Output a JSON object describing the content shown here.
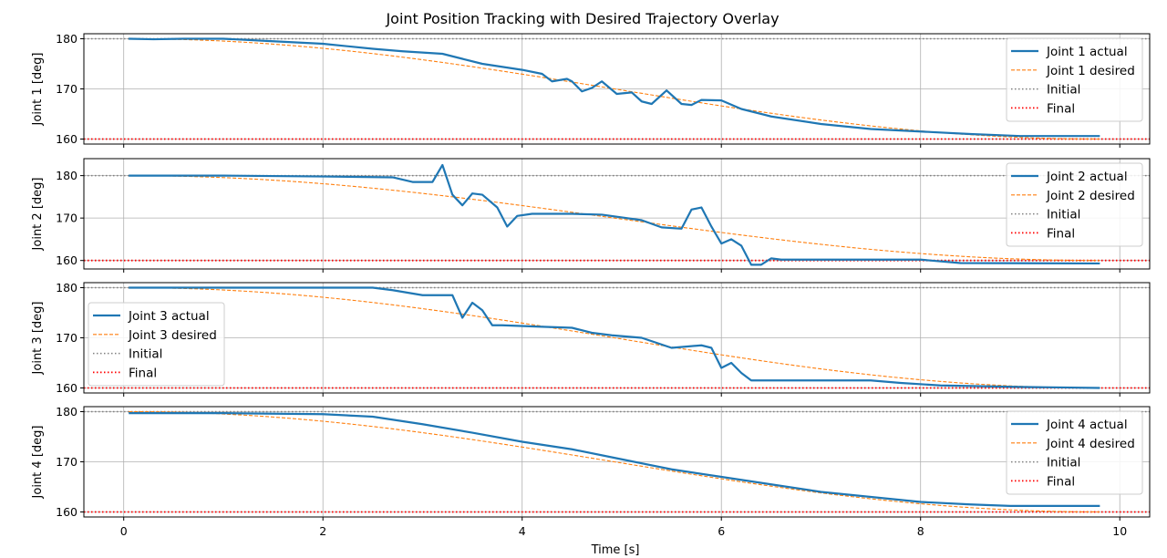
{
  "chart_data": {
    "type": "line",
    "title": "Joint Position Tracking with Desired Trajectory Overlay",
    "xlabel": "Time [s]",
    "xlim": [
      -0.4,
      10.3
    ],
    "x_ticks": [
      0,
      2,
      4,
      6,
      8,
      10
    ],
    "grid": true,
    "colors": {
      "actual": "#1f77b4",
      "desired": "#ff7f0e",
      "initial": "#808080",
      "final": "#ff0000"
    },
    "subplots": [
      {
        "ylabel": "Joint 1 [deg]",
        "ylim": [
          159,
          181
        ],
        "y_ticks": [
          160,
          170,
          180
        ],
        "legend_position": "upper right",
        "initial": 180,
        "final": 160,
        "desired": {
          "name": "Joint 1 desired",
          "start": 180,
          "end": 160,
          "t0": 0.05,
          "t1": 9.8
        },
        "actual": {
          "name": "Joint 1 actual",
          "x": [
            0.05,
            0.3,
            0.6,
            1.0,
            1.5,
            2.0,
            2.5,
            2.8,
            3.2,
            3.4,
            3.6,
            4.0,
            4.2,
            4.3,
            4.45,
            4.5,
            4.6,
            4.7,
            4.8,
            4.95,
            5.1,
            5.2,
            5.3,
            5.45,
            5.6,
            5.7,
            5.8,
            6.0,
            6.2,
            6.5,
            7.0,
            7.5,
            8.0,
            8.5,
            9.0,
            9.8
          ],
          "y": [
            180.0,
            179.9,
            180.0,
            180.0,
            179.5,
            179.0,
            178.0,
            177.5,
            177.0,
            176.0,
            175.0,
            173.8,
            173.0,
            171.5,
            172.0,
            171.5,
            169.5,
            170.2,
            171.5,
            169.0,
            169.3,
            167.5,
            167.0,
            169.7,
            167.0,
            166.8,
            167.8,
            167.7,
            166.0,
            164.5,
            163.0,
            162.0,
            161.5,
            161.0,
            160.6,
            160.6
          ]
        }
      },
      {
        "ylabel": "Joint 2 [deg]",
        "ylim": [
          158,
          184
        ],
        "y_ticks": [
          160,
          170,
          180
        ],
        "legend_position": "upper right",
        "initial": 180,
        "final": 160,
        "desired": {
          "name": "Joint 2 desired",
          "start": 180,
          "end": 160,
          "t0": 0.05,
          "t1": 9.8
        },
        "actual": {
          "name": "Joint 2 actual",
          "x": [
            0.05,
            1.0,
            2.0,
            2.7,
            2.9,
            3.1,
            3.2,
            3.3,
            3.4,
            3.5,
            3.6,
            3.75,
            3.85,
            3.95,
            4.1,
            4.5,
            4.8,
            5.2,
            5.4,
            5.6,
            5.7,
            5.8,
            5.9,
            6.0,
            6.1,
            6.2,
            6.3,
            6.4,
            6.5,
            6.6,
            8.0,
            8.4,
            9.8
          ],
          "y": [
            180.0,
            180.0,
            179.8,
            179.6,
            178.5,
            178.5,
            182.5,
            175.5,
            173.0,
            175.8,
            175.5,
            172.5,
            168.0,
            170.5,
            171.0,
            171.0,
            170.8,
            169.5,
            167.8,
            167.5,
            172.0,
            172.5,
            168.0,
            164.0,
            165.0,
            163.5,
            159.0,
            159.0,
            160.5,
            160.2,
            160.2,
            159.4,
            159.3
          ]
        }
      },
      {
        "ylabel": "Joint 3 [deg]",
        "ylim": [
          159,
          181
        ],
        "y_ticks": [
          160,
          170,
          180
        ],
        "legend_position": "center left",
        "initial": 180,
        "final": 160,
        "desired": {
          "name": "Joint 3 desired",
          "start": 180,
          "end": 160,
          "t0": 0.05,
          "t1": 9.8
        },
        "actual": {
          "name": "Joint 3 actual",
          "x": [
            0.05,
            0.5,
            1.0,
            2.0,
            2.5,
            2.7,
            3.0,
            3.3,
            3.4,
            3.5,
            3.6,
            3.7,
            3.8,
            4.2,
            4.5,
            4.7,
            4.9,
            5.2,
            5.5,
            5.8,
            5.9,
            6.0,
            6.1,
            6.2,
            6.3,
            6.5,
            7.0,
            7.5,
            7.8,
            8.2,
            9.0,
            9.8
          ],
          "y": [
            180.0,
            180.0,
            180.0,
            180.0,
            180.0,
            179.5,
            178.5,
            178.5,
            174.0,
            177.0,
            175.5,
            172.5,
            172.5,
            172.2,
            172.0,
            171.0,
            170.5,
            170.0,
            168.0,
            168.5,
            168.0,
            164.0,
            165.0,
            163.0,
            161.5,
            161.5,
            161.5,
            161.5,
            161.0,
            160.5,
            160.2,
            160.0
          ]
        }
      },
      {
        "ylabel": "Joint 4 [deg]",
        "ylim": [
          159,
          181
        ],
        "y_ticks": [
          160,
          170,
          180
        ],
        "legend_position": "upper right",
        "initial": 180,
        "final": 160,
        "desired": {
          "name": "Joint 4 desired",
          "start": 180,
          "end": 160,
          "t0": 0.05,
          "t1": 9.8
        },
        "actual": {
          "name": "Joint 4 actual",
          "x": [
            0.05,
            1.0,
            2.0,
            2.5,
            3.0,
            3.5,
            4.0,
            4.5,
            5.0,
            5.5,
            6.0,
            6.5,
            7.0,
            7.5,
            8.0,
            8.5,
            8.9,
            9.8
          ],
          "y": [
            179.7,
            179.7,
            179.5,
            179.0,
            177.5,
            175.8,
            174.0,
            172.5,
            170.5,
            168.5,
            167.0,
            165.5,
            164.0,
            163.0,
            162.0,
            161.5,
            161.2,
            161.2
          ]
        }
      }
    ],
    "legend_labels": {
      "initial": "Initial",
      "final": "Final"
    }
  }
}
